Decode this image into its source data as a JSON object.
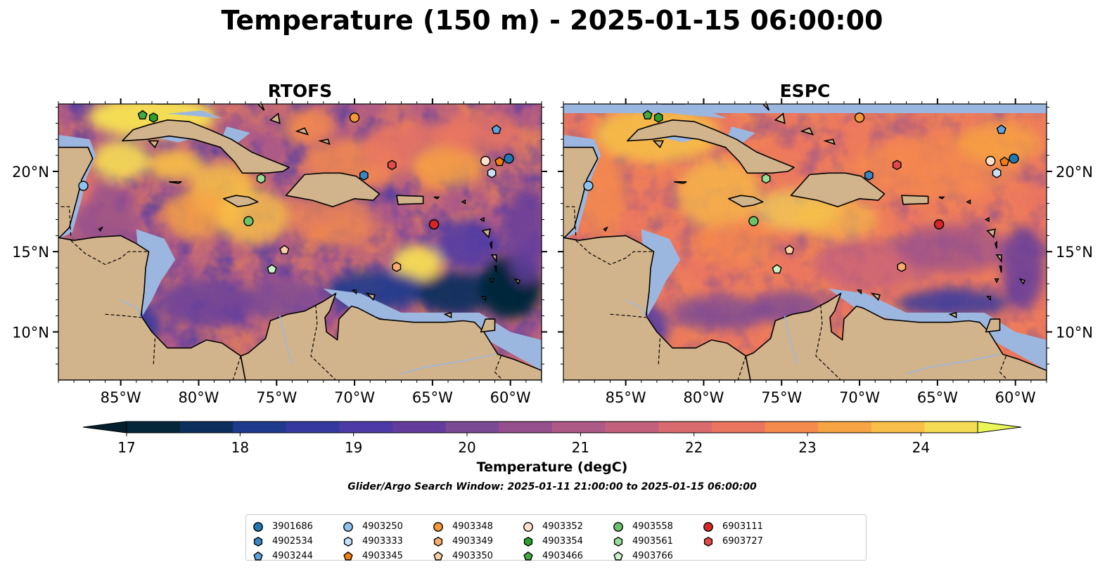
{
  "title": "Temperature (150 m) - 2025-01-15 06:00:00",
  "panels": [
    {
      "title": "RTOFS",
      "lat_labels_side": "left"
    },
    {
      "title": "ESPC",
      "lat_labels_side": "right"
    }
  ],
  "map_extent": {
    "lon": [
      -89,
      -58
    ],
    "lat": [
      7,
      24.2
    ]
  },
  "lon_ticks": [
    {
      "value": -85,
      "label": "85°W"
    },
    {
      "value": -80,
      "label": "80°W"
    },
    {
      "value": -75,
      "label": "75°W"
    },
    {
      "value": -70,
      "label": "70°W"
    },
    {
      "value": -65,
      "label": "65°W"
    },
    {
      "value": -60,
      "label": "60°W"
    }
  ],
  "lat_ticks": [
    {
      "value": 10,
      "label": "10°N"
    },
    {
      "value": 15,
      "label": "15°N"
    },
    {
      "value": 20,
      "label": "20°N"
    }
  ],
  "colorbar": {
    "label": "Temperature (degC)",
    "min": 17,
    "max": 24.5,
    "step": 0.5,
    "ticks": [
      "17",
      "18",
      "19",
      "20",
      "21",
      "22",
      "23",
      "24"
    ],
    "extend": "both",
    "colors": [
      "#04283a",
      "#0d2f5e",
      "#1e3a8c",
      "#35399f",
      "#4d3aa6",
      "#643d9c",
      "#7b4a95",
      "#954f8d",
      "#ad5a86",
      "#c3607c",
      "#d96b6e",
      "#ea7660",
      "#f58b4d",
      "#f7a442",
      "#f7bf47",
      "#f4dc55"
    ],
    "under_color": "#031e2c",
    "over_color": "#e8f65a"
  },
  "search_window": "Glider/Argo Search Window: 2025-01-11 21:00:00 to 2025-01-15 06:00:00",
  "land_color": "#d2b48c",
  "shelf_color": "#9bb7e0",
  "floats": [
    {
      "id": "3901686",
      "marker": "circle",
      "color": "#1f77b4",
      "lon": -60.1,
      "lat": 20.8
    },
    {
      "id": "4902534",
      "marker": "hexagon",
      "color": "#3b86c2",
      "lon": -69.4,
      "lat": 19.75
    },
    {
      "id": "4903244",
      "marker": "pentagon",
      "color": "#5da4dc",
      "lon": -60.9,
      "lat": 22.6
    },
    {
      "id": "4903250",
      "marker": "circle",
      "color": "#8ec3ef",
      "lon": -87.4,
      "lat": 19.1
    },
    {
      "id": "4903333",
      "marker": "hexagon",
      "color": "#c7e3fb",
      "lon": -61.2,
      "lat": 19.9
    },
    {
      "id": "4903345",
      "marker": "pentagon",
      "color": "#f07f12",
      "lon": -60.7,
      "lat": 20.6
    },
    {
      "id": "4903348",
      "marker": "circle",
      "color": "#f5973a",
      "lon": -70.0,
      "lat": 23.35
    },
    {
      "id": "4903349",
      "marker": "hexagon",
      "color": "#f8ad6e",
      "lon": -67.3,
      "lat": 14.05
    },
    {
      "id": "4903350",
      "marker": "pentagon",
      "color": "#fbd0a6",
      "lon": -74.5,
      "lat": 15.1
    },
    {
      "id": "4903352",
      "marker": "circle",
      "color": "#fde1cd",
      "lon": -61.6,
      "lat": 20.65
    },
    {
      "id": "4903354",
      "marker": "hexagon",
      "color": "#2ca02c",
      "lon": -82.9,
      "lat": 23.35
    },
    {
      "id": "4903466",
      "marker": "pentagon",
      "color": "#43aa43",
      "lon": -83.6,
      "lat": 23.5
    },
    {
      "id": "4903558",
      "marker": "circle",
      "color": "#6ac36a",
      "lon": -76.8,
      "lat": 16.9
    },
    {
      "id": "4903561",
      "marker": "hexagon",
      "color": "#98dc98",
      "lon": -76.0,
      "lat": 19.55
    },
    {
      "id": "4903766",
      "marker": "pentagon",
      "color": "#c8f5c8",
      "lon": -75.3,
      "lat": 13.9
    },
    {
      "id": "6903111",
      "marker": "circle",
      "color": "#d62728",
      "lon": -64.9,
      "lat": 16.7
    },
    {
      "id": "6903727",
      "marker": "hexagon",
      "color": "#e24a4a",
      "lon": -67.6,
      "lat": 20.4
    }
  ]
}
